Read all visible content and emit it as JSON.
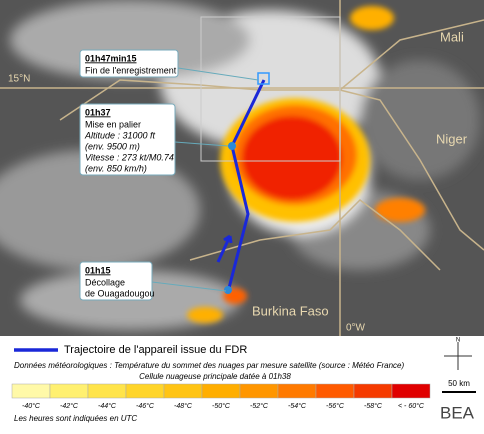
{
  "map": {
    "countries": [
      "Mali",
      "Niger",
      "Burkina Faso"
    ],
    "latitude": "15°N",
    "longitude": "0°W"
  },
  "callouts": [
    {
      "time": "01h47min15",
      "lines": [
        "Fin de l'enregistrement"
      ]
    },
    {
      "time": "01h37",
      "lines": [
        "Mise en palier",
        "Altitude : 31000 ft",
        "(env. 9500 m)",
        "Vitesse : 273 kt/M0.74",
        "(env. 850 km/h)"
      ]
    },
    {
      "time": "01h15",
      "lines": [
        "Décollage",
        "de Ouagadougou"
      ]
    }
  ],
  "legend": {
    "trajectory": "Trajectoire de l'appareil issue du FDR",
    "weather": "Données météorologiques : Température du sommet des nuages par mesure satellite (source : Météo France)",
    "cell": "Cellule nuageuse principale datée à 01h38",
    "scale": [
      {
        "label": "-40°C",
        "color": "#fff9a8"
      },
      {
        "label": "-42°C",
        "color": "#fff070"
      },
      {
        "label": "-44°C",
        "color": "#ffe44a"
      },
      {
        "label": "-46°C",
        "color": "#ffd52a"
      },
      {
        "label": "-48°C",
        "color": "#ffc414"
      },
      {
        "label": "-50°C",
        "color": "#ffae00"
      },
      {
        "label": "-52°C",
        "color": "#ff9600"
      },
      {
        "label": "-54°C",
        "color": "#ff7a00"
      },
      {
        "label": "-56°C",
        "color": "#ff5a00"
      },
      {
        "label": "-58°C",
        "color": "#f53a00"
      },
      {
        "label": "< - 60°C",
        "color": "#e00000"
      }
    ],
    "utc": "Les heures sont indiquées en UTC"
  },
  "scale_bar": "50 km",
  "compass": "N",
  "logo": "BEA"
}
